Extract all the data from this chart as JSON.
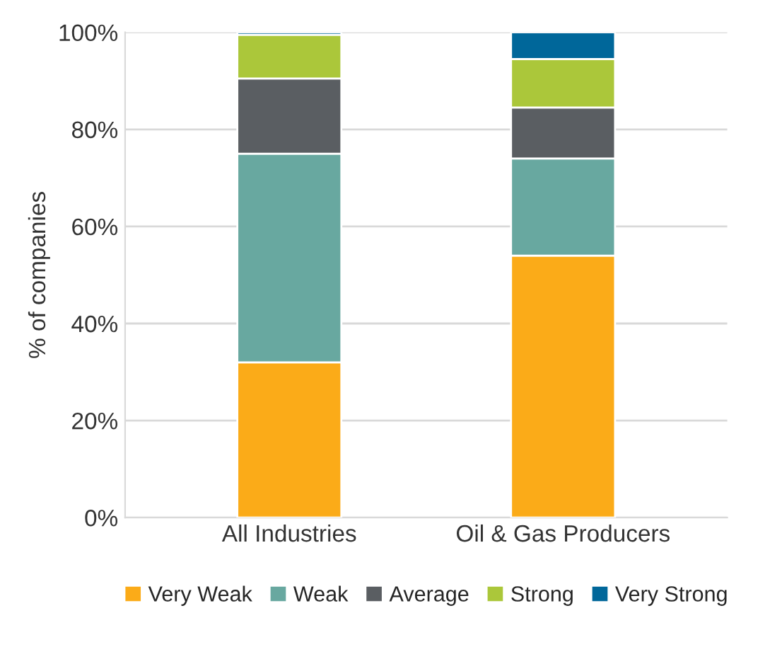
{
  "chart_data": {
    "type": "bar",
    "stacked": true,
    "ylabel": "% of companies",
    "categories": [
      "All Industries",
      "Oil & Gas Producers"
    ],
    "series": [
      {
        "name": "Very Weak",
        "color": "#fbab18",
        "values": [
          32,
          54
        ]
      },
      {
        "name": "Weak",
        "color": "#68a8a0",
        "values": [
          43,
          20
        ]
      },
      {
        "name": "Average",
        "color": "#5a5e62",
        "values": [
          15.5,
          10.5
        ]
      },
      {
        "name": "Strong",
        "color": "#abc73a",
        "values": [
          9,
          10
        ]
      },
      {
        "name": "Very Strong",
        "color": "#00679a",
        "values": [
          0.5,
          5.5
        ]
      }
    ],
    "ylim": [
      0,
      100
    ],
    "yticks": [
      {
        "value": 0,
        "label": "0%"
      },
      {
        "value": 20,
        "label": "20%"
      },
      {
        "value": 40,
        "label": "40%"
      },
      {
        "value": 60,
        "label": "60%"
      },
      {
        "value": 80,
        "label": "80%"
      },
      {
        "value": 100,
        "label": "100%"
      }
    ],
    "grid": "y",
    "legend": "bottom"
  }
}
